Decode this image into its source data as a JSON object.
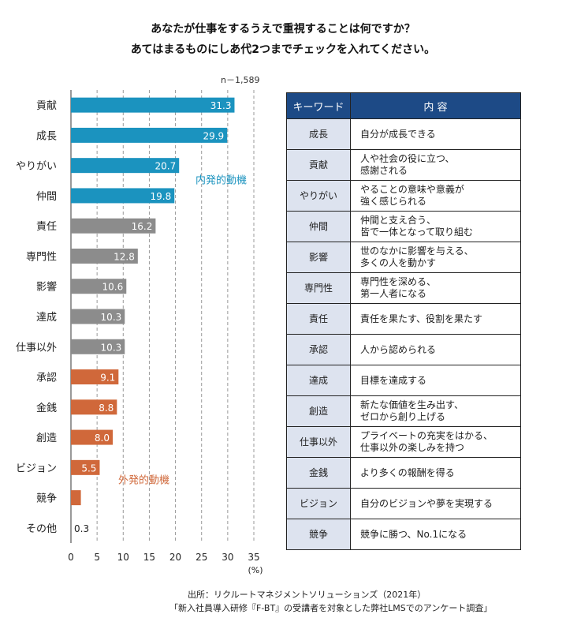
{
  "title_line1": "あなたが仕事をするうえで重視することは何ですか？",
  "title_line2": "あてはまるものにしあ代2つまでチェックを入れてください。",
  "n_label": "n－1,589",
  "chart_data": {
    "type": "bar",
    "orientation": "horizontal",
    "categories": [
      "貢献",
      "成長",
      "やりがい",
      "仲間",
      "責任",
      "専門性",
      "影響",
      "達成",
      "仕事以外",
      "承認",
      "金銭",
      "創造",
      "ビジョン",
      "競争",
      "その他"
    ],
    "values": [
      31.3,
      29.9,
      20.7,
      19.8,
      16.2,
      12.8,
      10.6,
      10.3,
      10.3,
      9.1,
      8.8,
      8.0,
      5.5,
      1.9,
      0.3
    ],
    "value_labels": [
      "31.3",
      "29.9",
      "20.7",
      "19.8",
      "16.2",
      "12.8",
      "10.6",
      "10.3",
      "10.3",
      "9.1",
      "8.8",
      "8.0",
      "5.5",
      "",
      "0.3"
    ],
    "groups": [
      "intrinsic",
      "intrinsic",
      "intrinsic",
      "intrinsic",
      "neutral",
      "neutral",
      "neutral",
      "neutral",
      "neutral",
      "extrinsic",
      "extrinsic",
      "extrinsic",
      "extrinsic",
      "extrinsic",
      "none"
    ],
    "colors": {
      "intrinsic": "#1b93bf",
      "neutral": "#8c8c8c",
      "extrinsic": "#d0683a",
      "none": "#ffffff"
    },
    "xlim": [
      0,
      35
    ],
    "xticks": [
      "0",
      "5",
      "10",
      "15",
      "20",
      "25",
      "30",
      "35"
    ],
    "xunit": "(%)",
    "grid": "vertical-dashed",
    "annotations": [
      {
        "text": "内発的動機",
        "group": "intrinsic",
        "color": "#1b93bf"
      },
      {
        "text": "外発的動機",
        "group": "extrinsic",
        "color": "#d0683a"
      }
    ]
  },
  "table": {
    "header_keyword": "キーワード",
    "header_content": "内 容",
    "header_color": "#1d4a86",
    "rows": [
      {
        "keyword": "成長",
        "line1": "自分が成長できる",
        "line2": ""
      },
      {
        "keyword": "貢献",
        "line1": "人や社会の役に立つ、",
        "line2": "感謝される"
      },
      {
        "keyword": "やりがい",
        "line1": "やることの意味や意義が",
        "line2": "強く感じられる"
      },
      {
        "keyword": "仲間",
        "line1": "仲間と支え合う、",
        "line2": "皆で一体となって取り組む"
      },
      {
        "keyword": "影響",
        "line1": "世のなかに影響を与える、",
        "line2": "多くの人を動かす"
      },
      {
        "keyword": "専門性",
        "line1": "専門性を深める、",
        "line2": "第一人者になる"
      },
      {
        "keyword": "責任",
        "line1": "責任を果たす、役割を果たす",
        "line2": ""
      },
      {
        "keyword": "承認",
        "line1": "人から認められる",
        "line2": ""
      },
      {
        "keyword": "達成",
        "line1": "目標を達成する",
        "line2": ""
      },
      {
        "keyword": "創造",
        "line1": "新たな価値を生み出す、",
        "line2": "ゼロから創り上げる"
      },
      {
        "keyword": "仕事以外",
        "line1": "プライベートの充実をはかる、",
        "line2": "仕事以外の楽しみを持つ"
      },
      {
        "keyword": "金銭",
        "line1": "より多くの報酬を得る",
        "line2": ""
      },
      {
        "keyword": "ビジョン",
        "line1": "自分のビジョンや夢を実現する",
        "line2": ""
      },
      {
        "keyword": "競争",
        "line1": "競争に勝つ、No.1になる",
        "line2": ""
      }
    ]
  },
  "source_line1": "出所：リクルートマネジメントソリューションズ（2021年）",
  "source_line2": "「新入社員導入研修『F-BT』の受講者を対象とした弊社LMSでのアンケート調査」"
}
